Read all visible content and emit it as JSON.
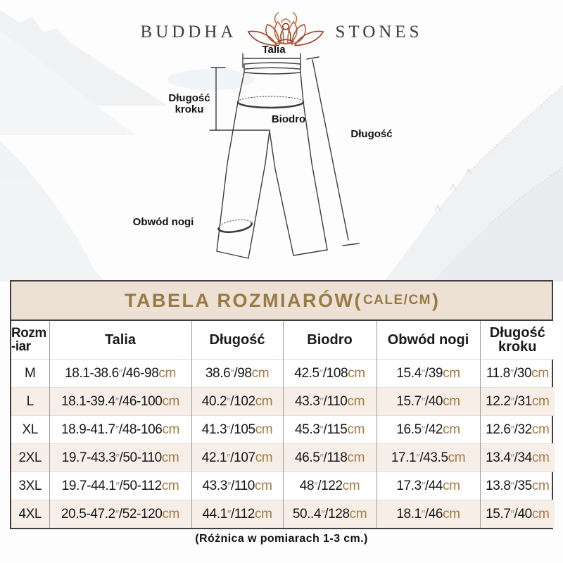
{
  "brand": {
    "word_left": "BUDDHA",
    "word_right": "STONES",
    "logo": "lotus-meditation-icon"
  },
  "diagram": {
    "labels": {
      "waist": "Talia",
      "inseam_line1": "Długość",
      "inseam_line2": "kroku",
      "hip": "Biodro",
      "length": "Długość",
      "leg_opening": "Obwód nogi"
    }
  },
  "table": {
    "title_prefix": "TABELA ROZMIARÓW(",
    "title_unit": "CALE/CM",
    "title_suffix": ")",
    "inch_mark": "″",
    "cm_label": "cm",
    "headers": [
      {
        "line1": "Rozm",
        "line2": "-iar"
      },
      {
        "line1": "Talia",
        "line2": ""
      },
      {
        "line1": "Długość",
        "line2": ""
      },
      {
        "line1": "Biodro",
        "line2": ""
      },
      {
        "line1": "Obwód nogi",
        "line2": ""
      },
      {
        "line1": "Długość",
        "line2": "kroku"
      }
    ],
    "rows": [
      {
        "size": "M",
        "cells": [
          [
            "18.1-38.6",
            "/46-98"
          ],
          [
            "38.6",
            "/98"
          ],
          [
            "42.5",
            "/108"
          ],
          [
            "15.4",
            "/39"
          ],
          [
            "11.8",
            "/30"
          ]
        ]
      },
      {
        "size": "L",
        "cells": [
          [
            "18.1-39.4",
            "/46-100"
          ],
          [
            "40.2",
            "/102"
          ],
          [
            "43.3",
            "/110"
          ],
          [
            "15.7",
            "/40"
          ],
          [
            "12.2",
            "/31"
          ]
        ]
      },
      {
        "size": "XL",
        "cells": [
          [
            "18.9-41.7",
            "/48-106"
          ],
          [
            "41.3",
            "/105"
          ],
          [
            "45.3",
            "/115"
          ],
          [
            "16.5",
            "/42"
          ],
          [
            "12.6",
            "/32"
          ]
        ]
      },
      {
        "size": "2XL",
        "cells": [
          [
            "19.7-43.3",
            "/50-110"
          ],
          [
            "42.1",
            "/107"
          ],
          [
            "46.5",
            "/118"
          ],
          [
            "17.1",
            "/43.5"
          ],
          [
            "13.4",
            "/34"
          ]
        ]
      },
      {
        "size": "3XL",
        "cells": [
          [
            "19.7-44.1",
            "/50-112"
          ],
          [
            "43.3",
            "/110"
          ],
          [
            "48",
            "/122"
          ],
          [
            "17.3",
            "/44"
          ],
          [
            "13.8",
            "/35"
          ]
        ]
      },
      {
        "size": "4XL",
        "cells": [
          [
            "20.5-47.2",
            "/52-120"
          ],
          [
            "44.1",
            "/112"
          ],
          [
            "50..4",
            "/128"
          ],
          [
            "18.1",
            "/46"
          ],
          [
            "15.7",
            "/40"
          ]
        ]
      }
    ]
  },
  "footer": {
    "note": "(Różnica w pomiarach 1-3 cm.)"
  },
  "colors": {
    "title_gold": "#997a43",
    "unit_brown": "#a27a42",
    "inch_mark_gray": "#9e8e78",
    "title_band_bg": "#ede0d4",
    "alt_row_bg": "#f7efe7",
    "logo_dark_red": "#8d3a28",
    "logo_orange": "#c06a35",
    "line_art": "#3d3d3d"
  }
}
